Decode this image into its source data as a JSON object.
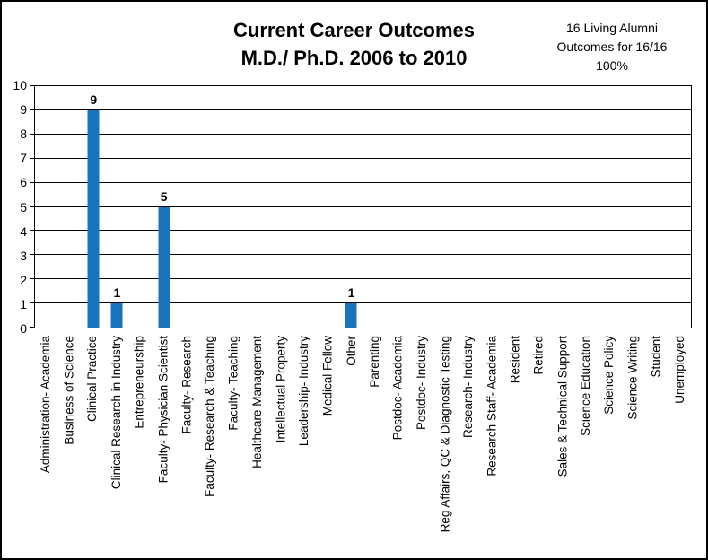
{
  "chart_data": {
    "type": "bar",
    "title_lines": [
      "Current Career Outcomes",
      "M.D./ Ph.D. 2006 to 2010"
    ],
    "annotation_lines": [
      "16 Living Alumni",
      "Outcomes for 16/16",
      "100%"
    ],
    "categories": [
      "Administration- Academia",
      "Business of Science",
      "Clinical Practice",
      "Clinical Research in Industry",
      "Entrepreneurship",
      "Faculty- Physician Scientist",
      "Faculty- Research",
      "Faculty- Research & Teaching",
      "Faculty- Teaching",
      "Healthcare Management",
      "Intellectual Property",
      "Leadership- Industry",
      "Medical Fellow",
      "Other",
      "Parenting",
      "Postdoc- Academia",
      "Postdoc- Industry",
      "Reg Affairs, QC & Diagnostic Testing",
      "Research- Industry",
      "Research Staff- Academia",
      "Resident",
      "Retired",
      "Sales & Technical Support",
      "Science Education",
      "Science Policy",
      "Science Writing",
      "Student",
      "Unemployed"
    ],
    "values": [
      0,
      0,
      9,
      1,
      0,
      5,
      0,
      0,
      0,
      0,
      0,
      0,
      0,
      1,
      0,
      0,
      0,
      0,
      0,
      0,
      0,
      0,
      0,
      0,
      0,
      0,
      0,
      0
    ],
    "xlabel": "",
    "ylabel": "",
    "ylim": [
      0,
      10
    ],
    "yticks": [
      0,
      1,
      2,
      3,
      4,
      5,
      6,
      7,
      8,
      9,
      10
    ],
    "grid": true,
    "legend": "none",
    "bar_color": "#1874bc",
    "axis_color": "#000000",
    "background_color": "#ffffff"
  }
}
